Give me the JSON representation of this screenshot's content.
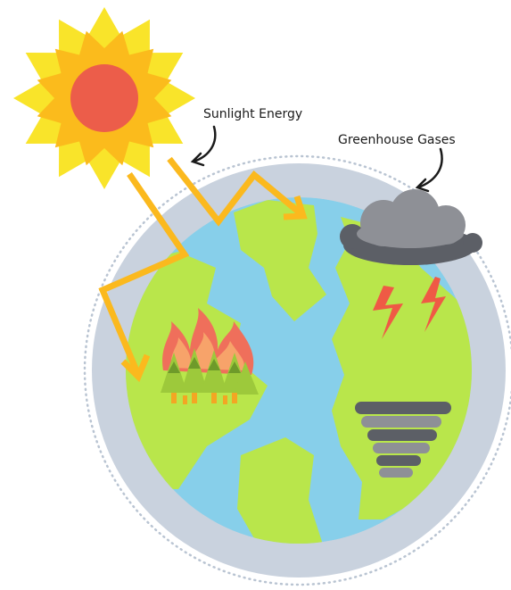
{
  "labels": {
    "sunlight": "Sunlight Energy",
    "greenhouse": "Greenhouse Gases"
  }
}
